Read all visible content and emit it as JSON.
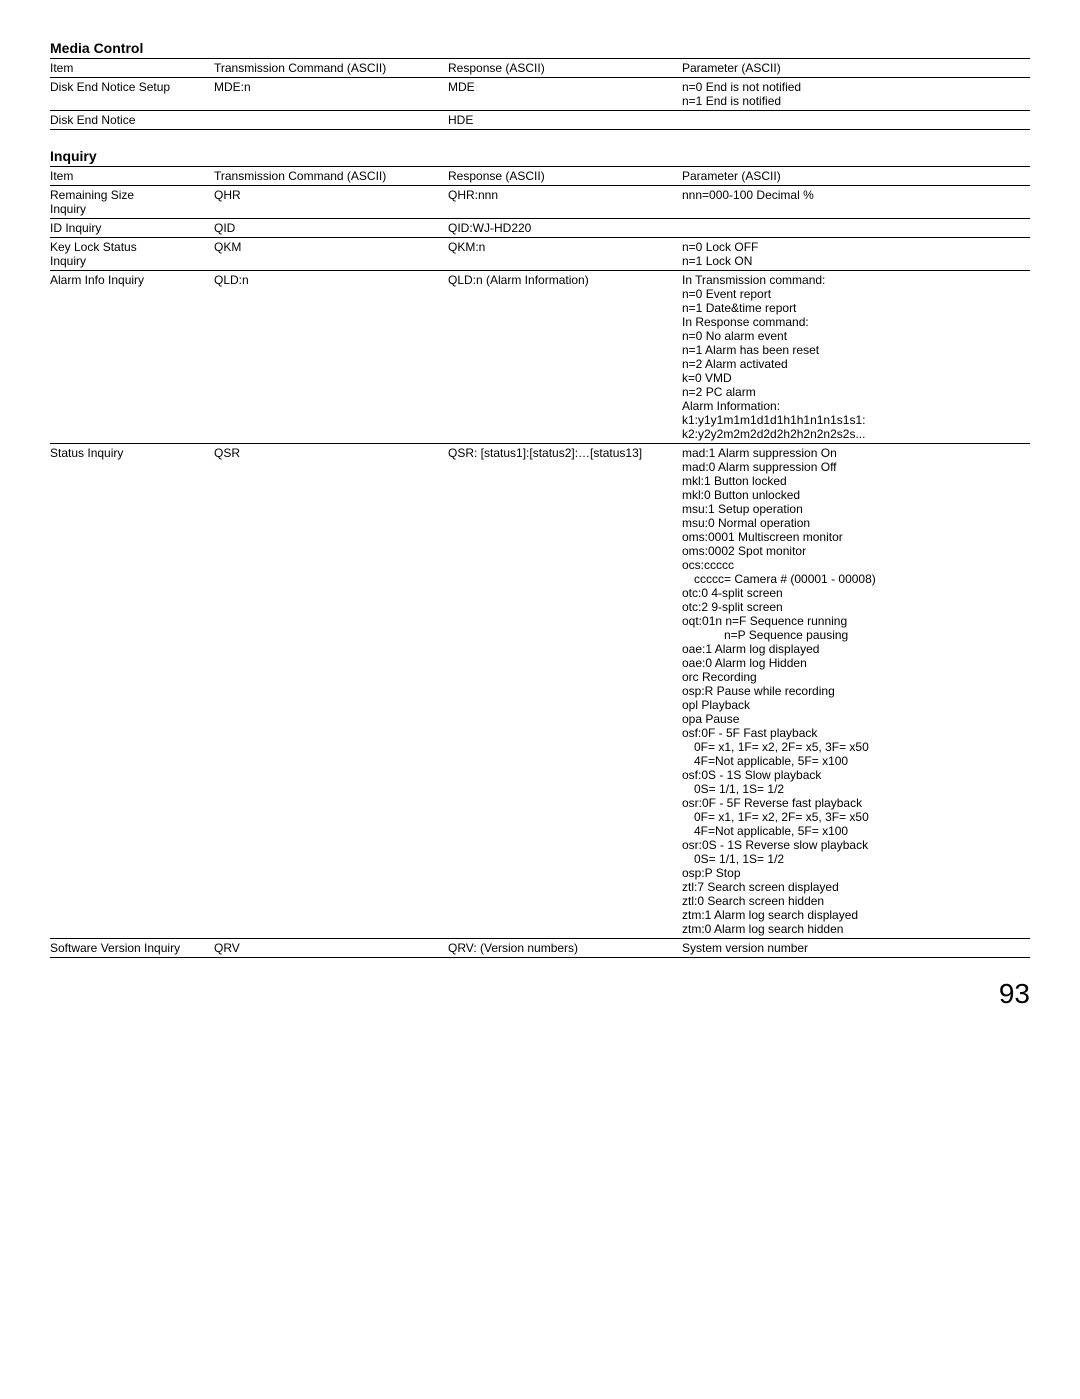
{
  "media": {
    "title": "Media Control",
    "headers": {
      "item": "Item",
      "tx": "Transmission Command (ASCII)",
      "resp": "Response (ASCII)",
      "param": "Parameter (ASCII)"
    },
    "rows": [
      {
        "item": "Disk End Notice Setup",
        "tx": "MDE:n",
        "resp": "MDE",
        "param": "n=0 End is not notified\nn=1 End is notified"
      },
      {
        "item": "Disk End Notice",
        "tx": "",
        "resp": "HDE",
        "param": ""
      }
    ]
  },
  "inquiry": {
    "title": "Inquiry",
    "headers": {
      "item": "Item",
      "tx": "Transmission Command (ASCII)",
      "resp": "Response (ASCII)",
      "param": "Parameter (ASCII)"
    },
    "rows": [
      {
        "item": "Remaining Size\n   Inquiry",
        "tx": "QHR",
        "resp": "QHR:nnn",
        "param": "nnn=000-100 Decimal %"
      },
      {
        "item": "ID Inquiry",
        "tx": "QID",
        "resp": "QID:WJ-HD220",
        "param": ""
      },
      {
        "item": "Key Lock Status\n   Inquiry",
        "tx": "QKM",
        "resp": "QKM:n",
        "param": "n=0 Lock OFF\nn=1 Lock ON"
      },
      {
        "item": "Alarm Info Inquiry",
        "tx": "QLD:n",
        "resp": "QLD:n (Alarm Information)",
        "param": "In Transmission command:\nn=0 Event report\nn=1 Date&time report\nIn Response command:\nn=0 No alarm event\nn=1 Alarm has been reset\nn=2 Alarm activated\nk=0 VMD\nn=2 PC alarm\nAlarm Information:\nk1:y1y1m1m1d1d1h1h1n1n1s1s1:\nk2:y2y2m2m2d2d2h2h2n2n2s2s..."
      },
      {
        "item": "Status Inquiry",
        "tx": "QSR",
        "resp": "QSR: [status1]:[status2]:…[status13]",
        "param": ""
      },
      {
        "item": "Software Version Inquiry",
        "tx": "QRV",
        "resp": "QRV: (Version numbers)",
        "param": "System version number"
      }
    ],
    "status_param": {
      "l1": "mad:1 Alarm suppression On",
      "l2": "mad:0 Alarm suppression Off",
      "l3": "mkl:1 Button locked",
      "l4": "mkl:0 Button unlocked",
      "l5": "msu:1 Setup operation",
      "l6": "msu:0 Normal operation",
      "l7": "oms:0001 Multiscreen monitor",
      "l8": "oms:0002 Spot monitor",
      "l9": "ocs:ccccc",
      "l10": "ccccc= Camera # (00001 - 00008)",
      "l11": "otc:0   4-split screen",
      "l12": "otc:2   9-split screen",
      "l13": "oqt:01n n=F Sequence running",
      "l14": "n=P Sequence pausing",
      "l15": "oae:1 Alarm log displayed",
      "l16": "oae:0 Alarm log Hidden",
      "l17": "orc   Recording",
      "l18": "osp:R Pause while recording",
      "l19": "opl   Playback",
      "l20": "opa  Pause",
      "l21": "osf:0F - 5F   Fast playback",
      "l22": "0F= x1, 1F= x2, 2F= x5, 3F= x50",
      "l23": "4F=Not applicable, 5F= x100",
      "l24": "osf:0S - 1S   Slow playback",
      "l25": "0S= 1/1, 1S= 1/2",
      "l26": "osr:0F - 5F   Reverse fast playback",
      "l27": "0F= x1, 1F= x2, 2F= x5, 3F= x50",
      "l28": "4F=Not applicable, 5F= x100",
      "l29": "osr:0S - 1S   Reverse slow playback",
      "l30": "0S= 1/1, 1S= 1/2",
      "l31": "osp:P  Stop",
      "l32": "ztl:7   Search screen displayed",
      "l33": "ztl:0   Search screen hidden",
      "l34": "ztm:1 Alarm log search displayed",
      "l35": "ztm:0 Alarm log search hidden"
    }
  },
  "page_number": "93"
}
